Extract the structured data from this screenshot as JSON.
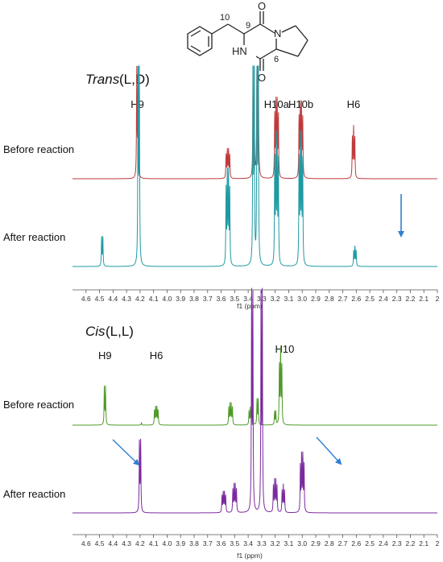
{
  "molecule": {
    "atom_N": "N",
    "atom_HN": "HN",
    "atom_O_top": "O",
    "atom_O_bottom": "O",
    "num_10": "10",
    "num_9": "9",
    "num_6": "6"
  },
  "chart_data": [
    {
      "type": "line",
      "title_italic": "Trans",
      "title_rest": " (L,D)",
      "xlabel": "f1 (ppm)",
      "xlim": [
        4.7,
        2.0
      ],
      "x_reversed": true,
      "x_ticks": [
        "4.6",
        "4.5",
        "4.4",
        "4.3",
        "4.2",
        "4.1",
        "4.0",
        "3.9",
        "3.8",
        "3.7",
        "3.6",
        "3.5",
        "3.4",
        "3.3",
        "3.2",
        "3.1",
        "3.0",
        "2.9",
        "2.8",
        "2.7",
        "2.6",
        "2.5",
        "2.4",
        "2.3",
        "2.2",
        "2.1",
        "2"
      ],
      "peak_labels": [
        {
          "text": "H9",
          "ppm": 4.22
        },
        {
          "text": "H10a",
          "ppm": 3.19
        },
        {
          "text": "H10b",
          "ppm": 3.01
        },
        {
          "text": "H6",
          "ppm": 2.62
        }
      ],
      "series": [
        {
          "name": "Before reaction",
          "color": "#c0393b",
          "peaks": [
            {
              "ppm": 4.22,
              "height": 0.62,
              "mult": 2
            },
            {
              "ppm": 3.55,
              "height": 0.18,
              "mult": 4
            },
            {
              "ppm": 3.36,
              "height": 0.5,
              "mult": 2
            },
            {
              "ppm": 3.33,
              "height": 1.0,
              "mult": 2
            },
            {
              "ppm": 3.19,
              "height": 0.48,
              "mult": 4
            },
            {
              "ppm": 3.01,
              "height": 0.46,
              "mult": 4
            },
            {
              "ppm": 2.62,
              "height": 0.3,
              "mult": 3
            }
          ]
        },
        {
          "name": "After reaction",
          "color": "#1f9aa3",
          "annotation": "arrow at H6",
          "peaks": [
            {
              "ppm": 4.48,
              "height": 0.12,
              "mult": 2
            },
            {
              "ppm": 4.21,
              "height": 0.92,
              "mult": 2
            },
            {
              "ppm": 3.55,
              "height": 0.4,
              "mult": 4
            },
            {
              "ppm": 3.36,
              "height": 0.9,
              "mult": 2
            },
            {
              "ppm": 3.33,
              "height": 1.0,
              "mult": 2
            },
            {
              "ppm": 3.19,
              "height": 0.55,
              "mult": 4
            },
            {
              "ppm": 3.01,
              "height": 0.55,
              "mult": 4
            },
            {
              "ppm": 2.61,
              "height": 0.08,
              "mult": 3
            }
          ]
        }
      ]
    },
    {
      "type": "line",
      "title_italic": "Cis",
      "title_rest": " (L,L)",
      "xlabel": "f1 (ppm)",
      "xlim": [
        4.7,
        2.0
      ],
      "x_reversed": true,
      "x_ticks": [
        "4.6",
        "4.5",
        "4.4",
        "4.3",
        "4.2",
        "4.1",
        "4.0",
        "3.9",
        "3.8",
        "3.7",
        "3.6",
        "3.5",
        "3.4",
        "3.3",
        "3.2",
        "3.1",
        "3.0",
        "2.9",
        "2.8",
        "2.7",
        "2.6",
        "2.5",
        "2.4",
        "2.3",
        "2.2",
        "2.1",
        "2"
      ],
      "peak_labels": [
        {
          "text": "H9",
          "ppm": 4.46
        },
        {
          "text": "H6",
          "ppm": 4.08
        },
        {
          "text": "H10",
          "ppm": 3.13
        }
      ],
      "series": [
        {
          "name": "Before reaction",
          "color": "#4f9a2a",
          "peaks": [
            {
              "ppm": 4.46,
              "height": 0.42,
              "mult": 2
            },
            {
              "ppm": 4.19,
              "height": 0.03,
              "mult": 1
            },
            {
              "ppm": 4.08,
              "height": 0.22,
              "mult": 4
            },
            {
              "ppm": 3.53,
              "height": 0.25,
              "mult": 4
            },
            {
              "ppm": 3.38,
              "height": 0.2,
              "mult": 4
            },
            {
              "ppm": 3.33,
              "height": 0.3,
              "mult": 2
            },
            {
              "ppm": 3.2,
              "height": 0.15,
              "mult": 2
            },
            {
              "ppm": 3.16,
              "height": 0.85,
              "mult": 3
            }
          ]
        },
        {
          "name": "After reaction",
          "color": "#7a2a9e",
          "annotation": "arrows at 4.2 and 3.0",
          "peaks": [
            {
              "ppm": 4.2,
              "height": 0.33,
              "mult": 2
            },
            {
              "ppm": 3.58,
              "height": 0.1,
              "mult": 4
            },
            {
              "ppm": 3.5,
              "height": 0.13,
              "mult": 4
            },
            {
              "ppm": 3.37,
              "height": 1.0,
              "mult": 2
            },
            {
              "ppm": 3.3,
              "height": 1.0,
              "mult": 2
            },
            {
              "ppm": 3.2,
              "height": 0.15,
              "mult": 4
            },
            {
              "ppm": 3.14,
              "height": 0.12,
              "mult": 3
            },
            {
              "ppm": 3.0,
              "height": 0.28,
              "mult": 4
            }
          ]
        }
      ]
    }
  ]
}
